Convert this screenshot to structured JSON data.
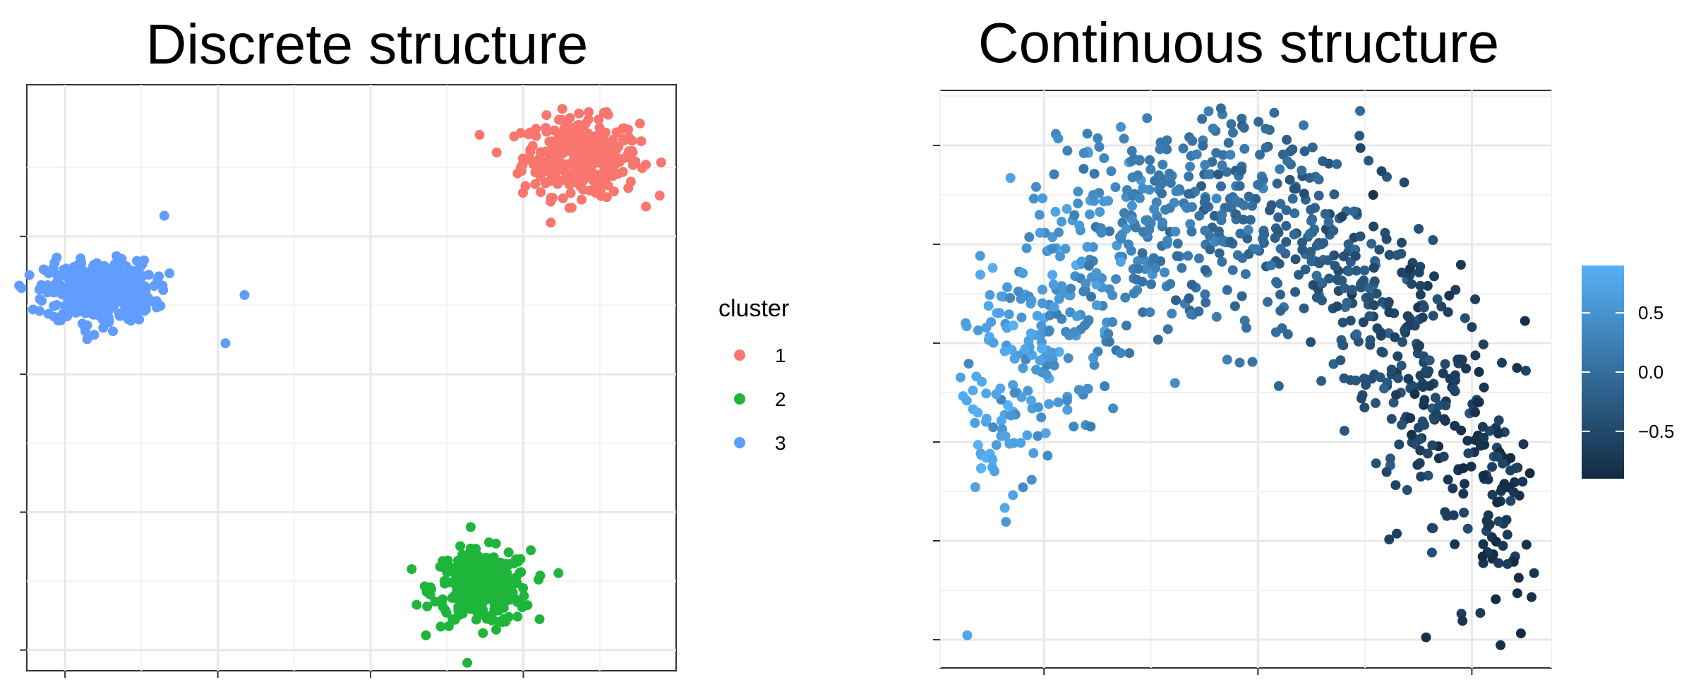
{
  "chart_data": [
    {
      "type": "scatter",
      "title": "Discrete structure",
      "xlabel": "",
      "ylabel": "",
      "xlim": [
        -0.5,
        8.0
      ],
      "ylim": [
        -0.3,
        8.2
      ],
      "grid": true,
      "legend": {
        "title": "cluster",
        "placement": "right",
        "entries": [
          {
            "label": "1",
            "color": "#F8766D"
          },
          {
            "label": "2",
            "color": "#1FB53B"
          },
          {
            "label": "3",
            "color": "#619CFF"
          }
        ]
      },
      "series": [
        {
          "color": "#F8766D",
          "center": [
            6.75,
            7.15
          ],
          "spread": [
            0.38,
            0.28
          ],
          "n": 330
        },
        {
          "color": "#1FB53B",
          "center": [
            5.45,
            0.9
          ],
          "spread": [
            0.32,
            0.27
          ],
          "n": 300
        },
        {
          "color": "#619CFF",
          "center": [
            0.45,
            5.2
          ],
          "spread": [
            0.35,
            0.22
          ],
          "n": 420
        }
      ],
      "extra_points": [
        {
          "x": 2.35,
          "y": 5.15,
          "series": 2
        },
        {
          "x": 2.1,
          "y": 4.45,
          "series": 2
        },
        {
          "x": 1.3,
          "y": 6.3,
          "series": 2
        }
      ]
    },
    {
      "type": "scatter",
      "title": "Continuous structure",
      "xlabel": "",
      "ylabel": "",
      "xlim": [
        0,
        10
      ],
      "ylim": [
        -1.5,
        3.5
      ],
      "grid": true,
      "color_scale": {
        "placement": "right",
        "min": -0.9,
        "max": 0.9,
        "low_color": "#132B43",
        "high_color": "#56B1F7",
        "ticks": [
          {
            "value": 0.5,
            "label": "0.5"
          },
          {
            "value": 0.0,
            "label": "0.0"
          },
          {
            "value": -0.5,
            "label": "−0.5"
          }
        ]
      },
      "n_points": 1000,
      "shape": "arch"
    }
  ]
}
